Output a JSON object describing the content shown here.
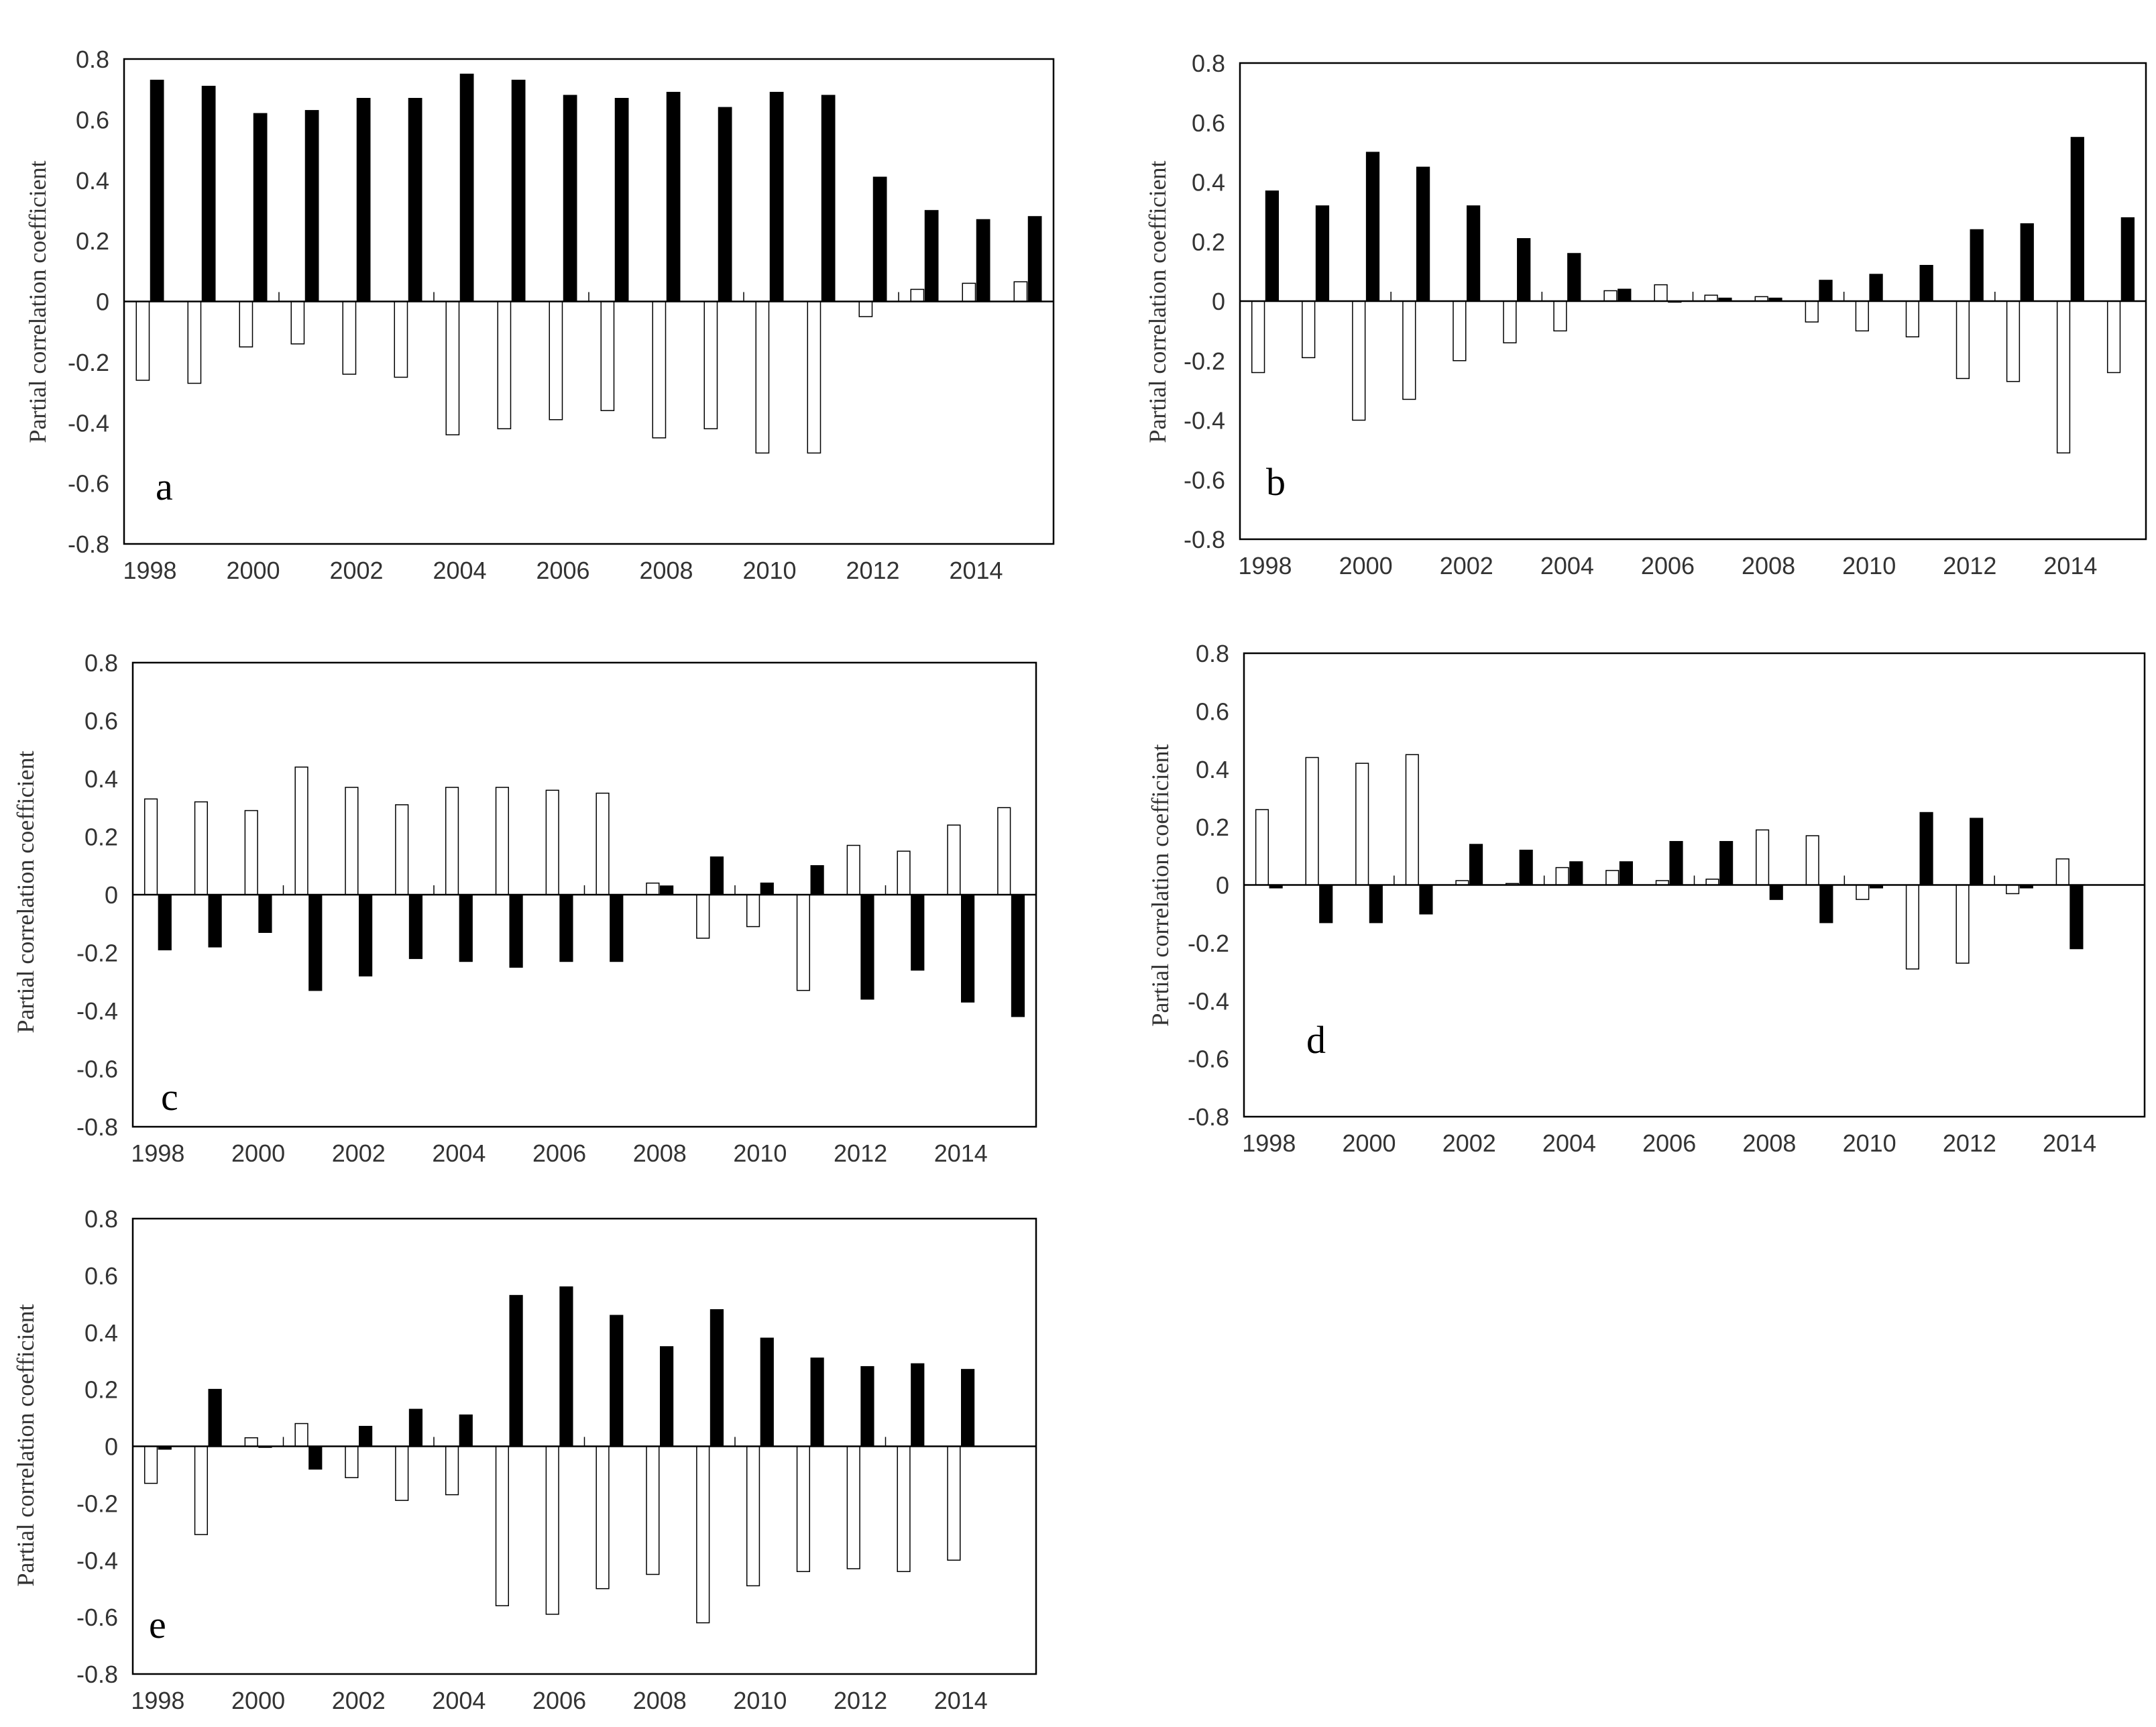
{
  "colors": {
    "series_a": "#ffffff",
    "series_b": "#000000",
    "outline": "#000000"
  },
  "chart_data": [
    {
      "panel": "a",
      "type": "bar",
      "ylabel": "Partial correlation coefficient",
      "ylim": [
        -0.8,
        0.8
      ],
      "yticks": [
        "0.8",
        "0.6",
        "0.4",
        "0.2",
        "0",
        "-0.2",
        "-0.4",
        "-0.6",
        "-0.8"
      ],
      "categories": [
        1998,
        1999,
        2000,
        2001,
        2002,
        2003,
        2004,
        2005,
        2006,
        2007,
        2008,
        2009,
        2010,
        2011,
        2012,
        2013,
        2014,
        2015
      ],
      "xtick_labels": [
        "1998",
        "2000",
        "2002",
        "2004",
        "2006",
        "2008",
        "2010",
        "2012",
        "2014"
      ],
      "series": [
        {
          "values": [
            -0.26,
            -0.27,
            -0.15,
            -0.14,
            -0.24,
            -0.25,
            -0.44,
            -0.42,
            -0.39,
            -0.36,
            -0.45,
            -0.42,
            -0.5,
            -0.5,
            -0.05,
            0.04,
            0.06,
            0.065
          ]
        },
        {
          "values": [
            0.73,
            0.71,
            0.62,
            0.63,
            0.67,
            0.67,
            0.75,
            0.73,
            0.68,
            0.67,
            0.69,
            0.64,
            0.69,
            0.68,
            0.41,
            0.3,
            0.27,
            0.28
          ]
        }
      ]
    },
    {
      "panel": "b",
      "type": "bar",
      "ylabel": "Partial correlation coefficient",
      "ylim": [
        -0.8,
        0.8
      ],
      "yticks": [
        "0.8",
        "0.6",
        "0.4",
        "0.2",
        "0",
        "-0.2",
        "-0.4",
        "-0.6",
        "-0.8"
      ],
      "categories": [
        1998,
        1999,
        2000,
        2001,
        2002,
        2003,
        2004,
        2005,
        2006,
        2007,
        2008,
        2009,
        2010,
        2011,
        2012,
        2013,
        2014,
        2015
      ],
      "xtick_labels": [
        "1998",
        "2000",
        "2002",
        "2004",
        "2006",
        "2008",
        "2010",
        "2012",
        "2014"
      ],
      "series": [
        {
          "values": [
            -0.24,
            -0.19,
            -0.4,
            -0.33,
            -0.2,
            -0.14,
            -0.1,
            0.035,
            0.055,
            0.02,
            0.015,
            -0.07,
            -0.1,
            -0.12,
            -0.26,
            -0.27,
            -0.51,
            -0.24
          ]
        },
        {
          "values": [
            0.37,
            0.32,
            0.5,
            0.45,
            0.32,
            0.21,
            0.16,
            0.04,
            0.0,
            0.01,
            0.01,
            0.07,
            0.09,
            0.12,
            0.24,
            0.26,
            0.55,
            0.28
          ]
        }
      ]
    },
    {
      "panel": "c",
      "type": "bar",
      "ylabel": "Partial correlation coefficient",
      "ylim": [
        -0.8,
        0.8
      ],
      "yticks": [
        "0.8",
        "0.6",
        "0.4",
        "0.2",
        "0",
        "-0.2",
        "-0.4",
        "-0.6",
        "-0.8"
      ],
      "categories": [
        1998,
        1999,
        2000,
        2001,
        2002,
        2003,
        2004,
        2005,
        2006,
        2007,
        2008,
        2009,
        2010,
        2011,
        2012,
        2013,
        2014,
        2015
      ],
      "xtick_labels": [
        "1998",
        "2000",
        "2002",
        "2004",
        "2006",
        "2008",
        "2010",
        "2012",
        "2014"
      ],
      "series": [
        {
          "values": [
            0.33,
            0.32,
            0.29,
            0.44,
            0.37,
            0.31,
            0.37,
            0.37,
            0.36,
            0.35,
            0.04,
            -0.15,
            -0.11,
            -0.33,
            0.17,
            0.15,
            0.24,
            0.3
          ]
        },
        {
          "values": [
            -0.19,
            -0.18,
            -0.13,
            -0.33,
            -0.28,
            -0.22,
            -0.23,
            -0.25,
            -0.23,
            -0.23,
            0.03,
            0.13,
            0.04,
            0.1,
            -0.36,
            -0.26,
            -0.37,
            -0.42
          ]
        }
      ]
    },
    {
      "panel": "d",
      "type": "bar",
      "ylabel": "Partial correlation coefficient",
      "ylim": [
        -0.8,
        0.8
      ],
      "yticks": [
        "0.8",
        "0.6",
        "0.4",
        "0.2",
        "0",
        "-0.2",
        "-0.4",
        "-0.6",
        "-0.8"
      ],
      "categories": [
        1998,
        1999,
        2000,
        2001,
        2002,
        2003,
        2004,
        2005,
        2006,
        2007,
        2008,
        2009,
        2010,
        2011,
        2012,
        2013,
        2014
      ],
      "xtick_labels": [
        "1998",
        "2000",
        "2002",
        "2004",
        "2006",
        "2008",
        "2010",
        "2012",
        "2014"
      ],
      "series": [
        {
          "values": [
            0.26,
            0.44,
            0.42,
            0.45,
            0.015,
            0.005,
            0.06,
            0.05,
            0.015,
            0.02,
            0.19,
            0.17,
            -0.05,
            -0.29,
            -0.27,
            -0.03,
            0.09
          ]
        },
        {
          "values": [
            -0.01,
            -0.13,
            -0.13,
            -0.1,
            0.14,
            0.12,
            0.08,
            0.08,
            0.15,
            0.15,
            -0.05,
            -0.13,
            -0.01,
            0.25,
            0.23,
            -0.01,
            -0.22
          ]
        }
      ]
    },
    {
      "panel": "e",
      "type": "bar",
      "ylabel": "Partial correlation coefficient",
      "ylim": [
        -0.8,
        0.8
      ],
      "yticks": [
        "0.8",
        "0.6",
        "0.4",
        "0.2",
        "0",
        "-0.2",
        "-0.4",
        "-0.6",
        "-0.8"
      ],
      "categories": [
        1998,
        1999,
        2000,
        2001,
        2002,
        2003,
        2004,
        2005,
        2006,
        2007,
        2008,
        2009,
        2010,
        2011,
        2012,
        2013,
        2014
      ],
      "xtick_labels": [
        "1998",
        "2000",
        "2002",
        "2004",
        "2006",
        "2008",
        "2010",
        "2012",
        "2014"
      ],
      "series": [
        {
          "values": [
            -0.13,
            -0.31,
            0.03,
            0.08,
            -0.11,
            -0.19,
            -0.17,
            -0.56,
            -0.59,
            -0.5,
            -0.45,
            -0.62,
            -0.49,
            -0.44,
            -0.43,
            -0.44,
            -0.4
          ]
        },
        {
          "values": [
            -0.01,
            0.2,
            0.0,
            -0.08,
            0.07,
            0.13,
            0.11,
            0.53,
            0.56,
            0.46,
            0.35,
            0.48,
            0.38,
            0.31,
            0.28,
            0.29,
            0.27
          ]
        }
      ]
    }
  ]
}
